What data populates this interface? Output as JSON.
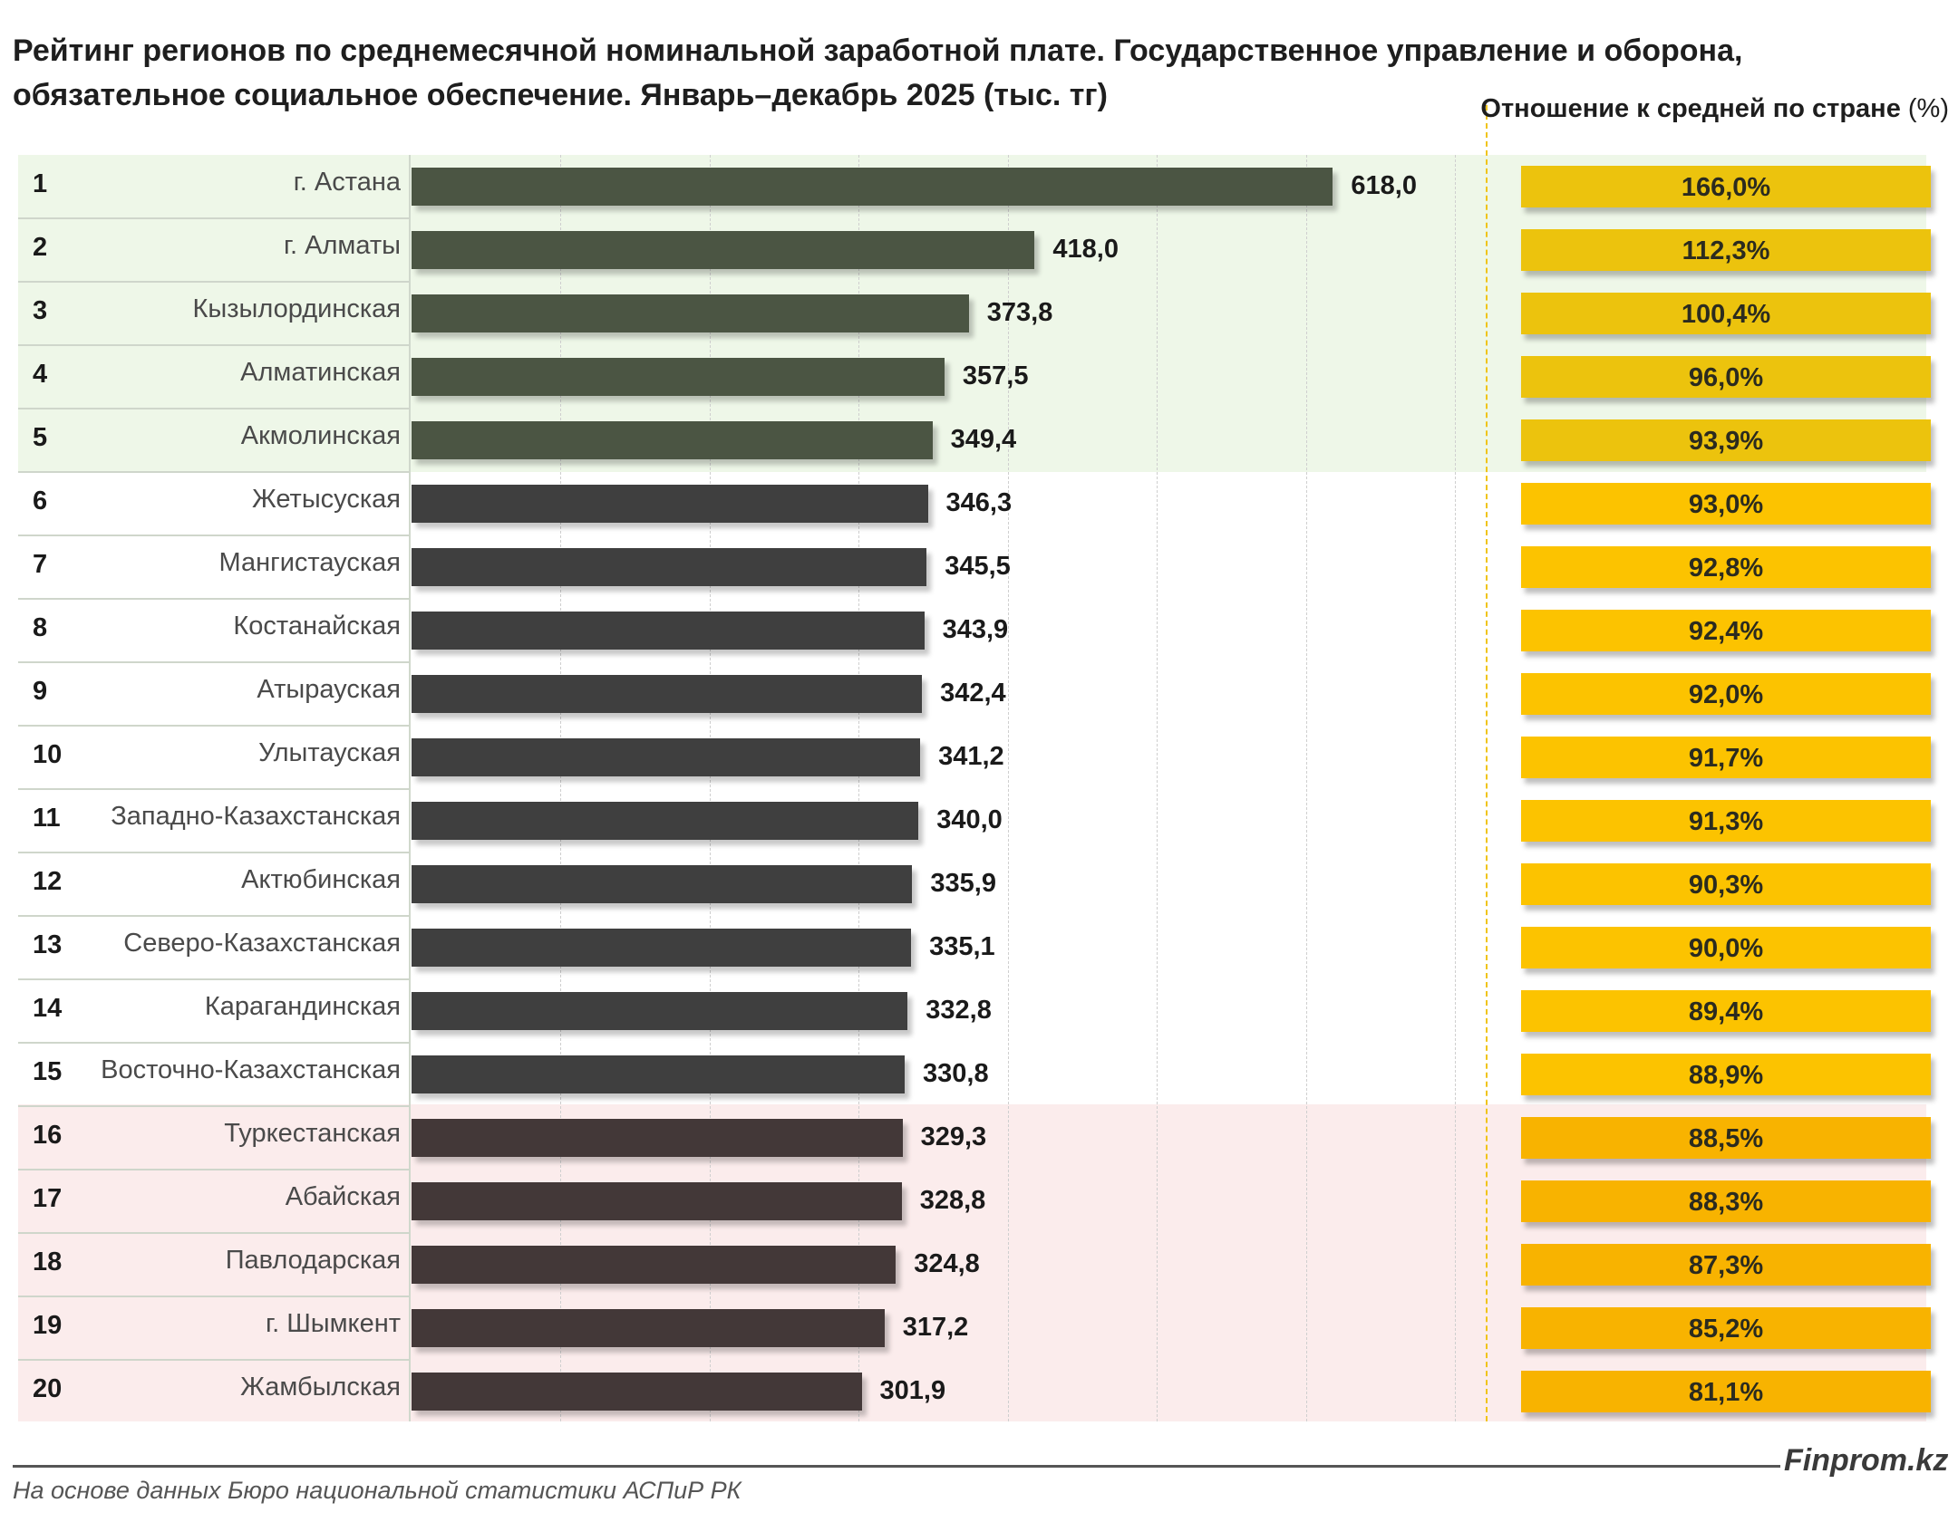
{
  "header": {
    "title": "Рейтинг регионов по среднемесячной номинальной заработной плате. Государственное управление и оборона, обязательное социальное обеспечение. Январь–декабрь 2025 (тыс. тг)",
    "ratio_header": "Отношение к средней по стране",
    "ratio_header_unit": "(%)"
  },
  "footer": {
    "brand": "Finprom.kz",
    "source": "На основе данных Бюро национальной статистики АСПиР РК"
  },
  "colors": {
    "bar_top": "#4b5543",
    "bar_mid": "#3f3f3f",
    "bar_bottom": "#433838",
    "ratio_top": "#ecc30d",
    "ratio_mid": "#fcc300",
    "ratio_bottom": "#f8b300",
    "band_top": "#eef7e8",
    "band_bottom": "#fbecec"
  },
  "chart_data": {
    "type": "bar",
    "orientation": "horizontal",
    "title": "Рейтинг регионов по среднемесячной номинальной заработной плате. Государственное управление и оборона, обязательное социальное обеспечение. Январь–декабрь 2025 (тыс. тг)",
    "ranks": [
      "1",
      "2",
      "3",
      "4",
      "5",
      "6",
      "7",
      "8",
      "9",
      "10",
      "11",
      "12",
      "13",
      "14",
      "15",
      "16",
      "17",
      "18",
      "19",
      "20"
    ],
    "categories": [
      "г. Астана",
      "г. Алматы",
      "Кызылординская",
      "Алматинская",
      "Акмолинская",
      "Жетысуская",
      "Мангистауская",
      "Костанайская",
      "Атырауская",
      "Улытауская",
      "Западно-Казахстанская",
      "Актюбинская",
      "Северо-Казахстанская",
      "Карагандинская",
      "Восточно-Казахстанская",
      "Туркестанская",
      "Абайская",
      "Павлодарская",
      "г. Шымкент",
      "Жамбылская"
    ],
    "values": [
      618.0,
      418.0,
      373.8,
      357.5,
      349.4,
      346.3,
      345.5,
      343.9,
      342.4,
      341.2,
      340.0,
      335.9,
      335.1,
      332.8,
      330.8,
      329.3,
      328.8,
      324.8,
      317.2,
      301.9
    ],
    "value_labels": [
      "618,0",
      "418,0",
      "373,8",
      "357,5",
      "349,4",
      "346,3",
      "345,5",
      "343,9",
      "342,4",
      "341,2",
      "340,0",
      "335,9",
      "335,1",
      "332,8",
      "330,8",
      "329,3",
      "328,8",
      "324,8",
      "317,2",
      "301,9"
    ],
    "ratio_series": {
      "name": "Отношение к средней по стране (%)",
      "values": [
        166.0,
        112.3,
        100.4,
        96.0,
        93.9,
        93.0,
        92.8,
        92.4,
        92.0,
        91.7,
        91.3,
        90.3,
        90.0,
        89.4,
        88.9,
        88.5,
        88.3,
        87.3,
        85.2,
        81.1
      ],
      "labels": [
        "166,0%",
        "112,3%",
        "100,4%",
        "96,0%",
        "93,9%",
        "93,0%",
        "92,8%",
        "92,4%",
        "92,0%",
        "91,7%",
        "91,3%",
        "90,3%",
        "90,0%",
        "89,4%",
        "88,9%",
        "88,5%",
        "88,3%",
        "87,3%",
        "85,2%",
        "81,1%"
      ]
    },
    "xlim": [
      0,
      700
    ],
    "grid": true
  }
}
